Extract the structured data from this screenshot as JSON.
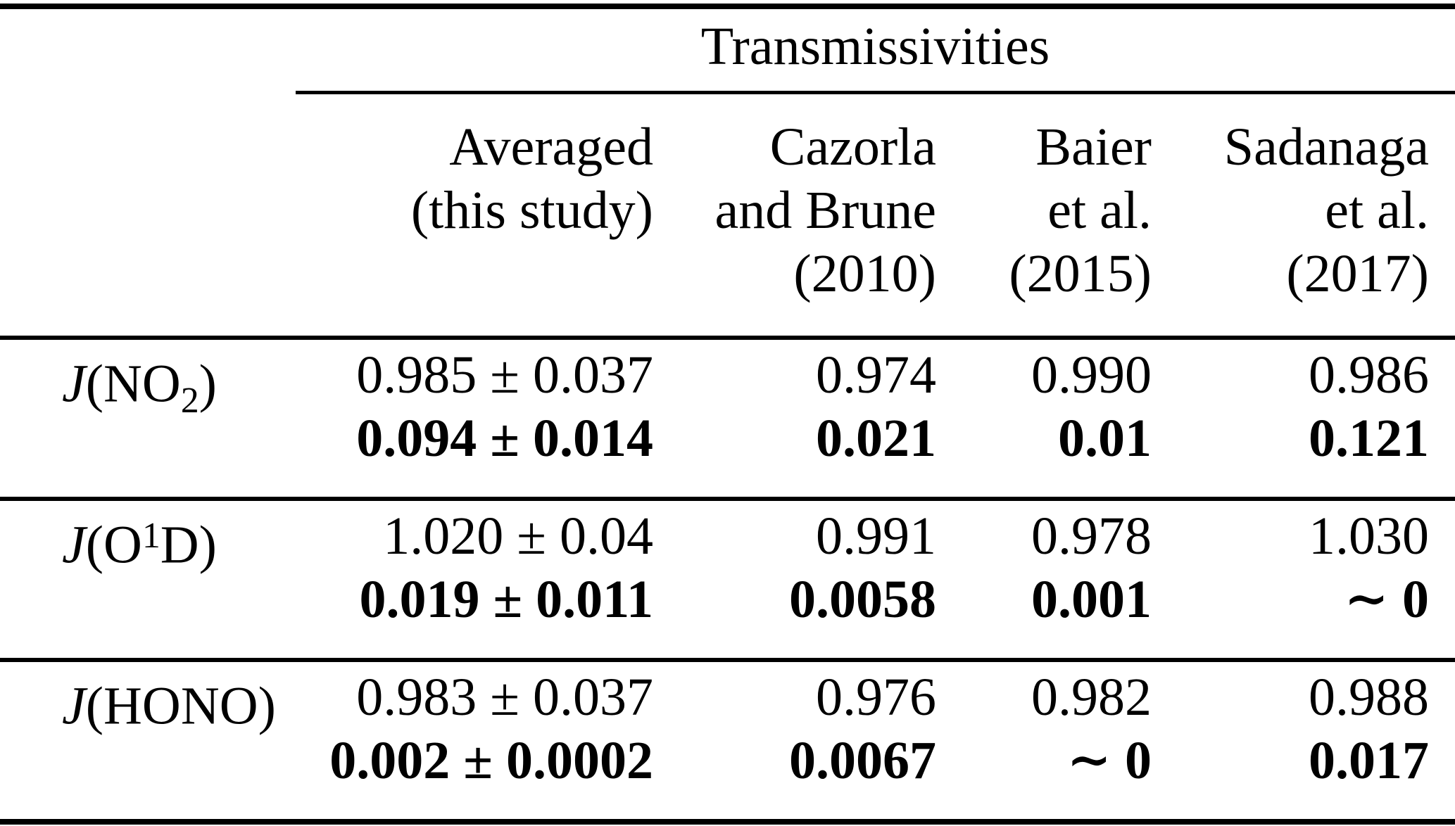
{
  "colors": {
    "text": "#000000",
    "background": "#ffffff",
    "rules": "#000000"
  },
  "table": {
    "group_header": "Transmissivities",
    "columns": [
      {
        "lines": [
          "Averaged",
          "(this study)",
          ""
        ]
      },
      {
        "lines": [
          "Cazorla",
          "and Brune",
          "(2010)"
        ]
      },
      {
        "lines": [
          "Baier",
          "et al.",
          "(2015)"
        ]
      },
      {
        "lines": [
          "Sadanaga",
          "et al.",
          "(2017)"
        ]
      }
    ],
    "rows": [
      {
        "label": {
          "symbol": "J",
          "open": "(NO",
          "subscript": "2",
          "superscript": "",
          "close": ")"
        },
        "cells": [
          {
            "normal": "0.985 ± 0.037",
            "bold": "0.094 ± 0.014"
          },
          {
            "normal": "0.974",
            "bold": "0.021"
          },
          {
            "normal": "0.990",
            "bold": "0.01"
          },
          {
            "normal": "0.986",
            "bold": "0.121"
          }
        ]
      },
      {
        "label": {
          "symbol": "J",
          "open": "(O",
          "subscript": "",
          "superscript": "1",
          "close": "D)"
        },
        "cells": [
          {
            "normal": "1.020 ± 0.04",
            "bold": "0.019 ± 0.011"
          },
          {
            "normal": "0.991",
            "bold": "0.0058"
          },
          {
            "normal": "0.978",
            "bold": "0.001"
          },
          {
            "normal": "1.030",
            "bold": "∼ 0"
          }
        ]
      },
      {
        "label": {
          "symbol": "J",
          "open": "(HONO)",
          "subscript": "",
          "superscript": "",
          "close": ""
        },
        "cells": [
          {
            "normal": "0.983 ± 0.037",
            "bold": "0.002 ± 0.0002"
          },
          {
            "normal": "0.976",
            "bold": "0.0067"
          },
          {
            "normal": "0.982",
            "bold": "∼ 0"
          },
          {
            "normal": "0.988",
            "bold": "0.017"
          }
        ]
      }
    ]
  }
}
